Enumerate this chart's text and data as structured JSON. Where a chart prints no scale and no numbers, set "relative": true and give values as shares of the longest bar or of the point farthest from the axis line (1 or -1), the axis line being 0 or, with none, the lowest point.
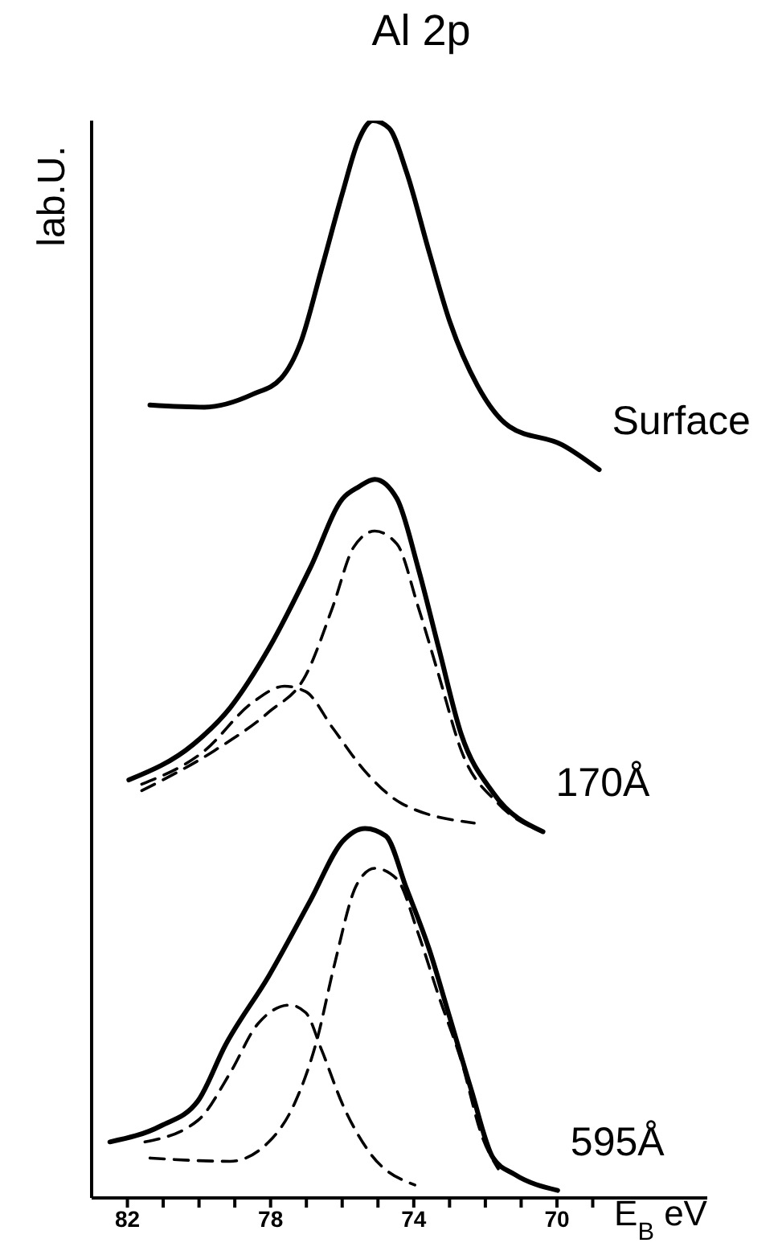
{
  "chart_data": {
    "type": "line",
    "title": "Al 2p",
    "xlabel": "E$_{B}$ eV",
    "ylabel": "lab.U.",
    "relative": true,
    "legend": false,
    "grid": false,
    "marker": "none",
    "xlim": [
      83,
      65.8
    ],
    "xticks": [
      82,
      {
        "value": 81,
        "label": null
      },
      {
        "value": 80,
        "label": null
      },
      {
        "value": 79,
        "label": null
      },
      78,
      {
        "value": 77,
        "label": null
      },
      {
        "value": 76,
        "label": null
      },
      {
        "value": 75,
        "label": null
      },
      74,
      {
        "value": 73,
        "label": null
      },
      {
        "value": 72,
        "label": null
      },
      {
        "value": 71,
        "label": null
      },
      70,
      {
        "value": 69,
        "label": null
      }
    ],
    "series": [
      {
        "name": "Surface",
        "color": "#000000",
        "line_style": "solid",
        "x": [
          81.37,
          79.85,
          78.5,
          77.7,
          77.16,
          76.57,
          75.99,
          75.54,
          75.14,
          74.69,
          74.2,
          73.57,
          72.99,
          72.22,
          71.33,
          69.85,
          68.82
        ],
        "values": [
          0.736,
          0.734,
          0.746,
          0.761,
          0.794,
          0.863,
          0.933,
          0.982,
          1.0,
          0.993,
          0.952,
          0.878,
          0.813,
          0.754,
          0.716,
          0.699,
          0.676
        ]
      },
      {
        "name": "170Å",
        "color": "#000000",
        "line_style": "solid",
        "x": [
          81.96,
          80.16,
          79.13,
          78.05,
          76.89,
          75.99,
          75.54,
          75.09,
          74.47,
          73.88,
          73.3,
          72.67,
          71.78,
          70.39
        ],
        "values": [
          0.388,
          0.421,
          0.455,
          0.51,
          0.585,
          0.649,
          0.66,
          0.667,
          0.649,
          0.585,
          0.51,
          0.43,
          0.376,
          0.34
        ]
      },
      {
        "color": "#000000",
        "line_style": "dashed",
        "x": [
          81.6,
          79.58,
          78.05,
          77.02,
          76.26,
          75.68,
          75.09,
          74.47,
          73.88,
          73.3,
          72.67,
          71.64,
          70.43
        ],
        "values": [
          0.378,
          0.415,
          0.451,
          0.485,
          0.549,
          0.604,
          0.619,
          0.607,
          0.549,
          0.485,
          0.415,
          0.366,
          0.34
        ]
      },
      {
        "color": "#000000",
        "line_style": "dashed",
        "x": [
          81.6,
          79.85,
          78.5,
          77.61,
          77.02,
          76.26,
          75.36,
          74.33,
          72.31
        ],
        "values": [
          0.384,
          0.415,
          0.46,
          0.475,
          0.47,
          0.436,
          0.396,
          0.366,
          0.348
        ]
      },
      {
        "name": "595Å",
        "color": "#000000",
        "line_style": "solid",
        "x": [
          82.49,
          81.06,
          80.03,
          79.26,
          78.05,
          76.89,
          75.99,
          75.36,
          74.78,
          74.2,
          73.57,
          72.99,
          72.4,
          71.78,
          71.19,
          69.98
        ],
        "values": [
          0.052,
          0.067,
          0.09,
          0.142,
          0.206,
          0.276,
          0.331,
          0.343,
          0.336,
          0.287,
          0.231,
          0.167,
          0.101,
          0.037,
          0.022,
          0.007
        ]
      },
      {
        "color": "#000000",
        "line_style": "dashed",
        "x": [
          81.51,
          80.03,
          79.13,
          78.37,
          77.47,
          77.02,
          76.57,
          75.99,
          75.23,
          73.97
        ],
        "values": [
          0.052,
          0.072,
          0.116,
          0.161,
          0.179,
          0.172,
          0.137,
          0.087,
          0.042,
          0.012
        ]
      },
      {
        "color": "#000000",
        "line_style": "dashed",
        "x": [
          81.37,
          79.13,
          78.05,
          77.34,
          76.71,
          76.22,
          75.59,
          75.09,
          74.47,
          73.88,
          73.3,
          72.67,
          72.09,
          71.64
        ],
        "values": [
          0.037,
          0.034,
          0.052,
          0.087,
          0.146,
          0.216,
          0.291,
          0.306,
          0.296,
          0.246,
          0.187,
          0.127,
          0.057,
          0.027
        ]
      }
    ]
  }
}
